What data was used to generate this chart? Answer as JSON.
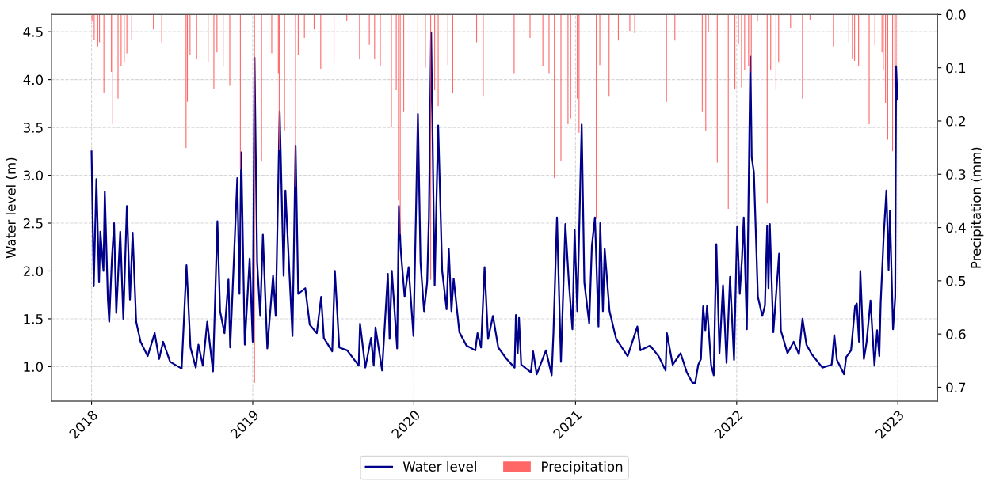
{
  "chart_data": {
    "type": "line",
    "xlabel": null,
    "ylabel": "Water level (m)",
    "y2label": "Precipitation (mm)",
    "xlim": [
      "2017-10-02",
      "2023-04-01"
    ],
    "xticks": [
      {
        "value": "2018-01-01",
        "label": "2018"
      },
      {
        "value": "2019-01-01",
        "label": "2019"
      },
      {
        "value": "2020-01-01",
        "label": "2020"
      },
      {
        "value": "2021-01-01",
        "label": "2021"
      },
      {
        "value": "2022-01-01",
        "label": "2022"
      },
      {
        "value": "2023-01-01",
        "label": "2023"
      }
    ],
    "ylim": [
      0.64,
      4.68
    ],
    "yticks": [
      {
        "value": 1,
        "label": "1.0"
      },
      {
        "value": 1.5,
        "label": "1.5"
      },
      {
        "value": 2,
        "label": "2.0"
      },
      {
        "value": 2.5,
        "label": "2.5"
      },
      {
        "value": 3,
        "label": "3.0"
      },
      {
        "value": 3.5,
        "label": "3.5"
      },
      {
        "value": 4,
        "label": "4.0"
      },
      {
        "value": 4.5,
        "label": "4.5"
      }
    ],
    "y2lim": [
      0.726,
      0.0
    ],
    "y2ticks": [
      {
        "value": 0,
        "label": "0.0"
      },
      0.1,
      0.2,
      0.3,
      0.4,
      0.5,
      0.6,
      0.7
    ],
    "grid": true,
    "legend": "bottom",
    "line_style": "solid",
    "series": [
      {
        "name": "Water level",
        "color": "#00008b",
        "x": [
          "2018-01-01",
          "2018-01-06",
          "2018-01-12",
          "2018-01-18",
          "2018-01-21",
          "2018-01-28",
          "2018-01-31",
          "2018-02-07",
          "2018-02-10",
          "2018-02-16",
          "2018-02-21",
          "2018-02-26",
          "2018-03-07",
          "2018-03-14",
          "2018-03-22",
          "2018-03-29",
          "2018-04-04",
          "2018-04-12",
          "2018-04-22",
          "2018-05-08",
          "2018-05-24",
          "2018-06-03",
          "2018-06-12",
          "2018-06-28",
          "2018-07-24",
          "2018-08-04",
          "2018-08-13",
          "2018-08-25",
          "2018-08-31",
          "2018-09-10",
          "2018-09-20",
          "2018-10-03",
          "2018-10-13",
          "2018-10-19",
          "2018-10-29",
          "2018-11-07",
          "2018-11-11",
          "2018-11-27",
          "2018-12-02",
          "2018-12-06",
          "2018-12-14",
          "2018-12-25",
          "2019-01-01",
          "2019-01-05",
          "2019-01-11",
          "2019-01-18",
          "2019-01-24",
          "2019-02-03",
          "2019-02-16",
          "2019-02-22",
          "2019-03-03",
          "2019-03-12",
          "2019-03-16",
          "2019-04-01",
          "2019-04-08",
          "2019-04-14",
          "2019-04-30",
          "2019-05-10",
          "2019-05-26",
          "2019-06-05",
          "2019-06-11",
          "2019-06-30",
          "2019-07-06",
          "2019-07-16",
          "2019-08-03",
          "2019-08-29",
          "2019-09-01",
          "2019-09-13",
          "2019-09-26",
          "2019-10-02",
          "2019-10-06",
          "2019-10-21",
          "2019-11-03",
          "2019-11-07",
          "2019-11-12",
          "2019-11-24",
          "2019-11-28",
          "2019-12-02",
          "2019-12-11",
          "2019-12-20",
          "2019-12-31",
          "2020-01-06",
          "2020-01-10",
          "2020-01-16",
          "2020-01-24",
          "2020-01-31",
          "2020-02-04",
          "2020-02-09",
          "2020-02-17",
          "2020-02-21",
          "2020-02-25",
          "2020-03-05",
          "2020-03-15",
          "2020-03-20",
          "2020-03-26",
          "2020-03-31",
          "2020-04-13",
          "2020-04-29",
          "2020-05-19",
          "2020-05-24",
          "2020-06-01",
          "2020-06-09",
          "2020-06-17",
          "2020-06-28",
          "2020-07-10",
          "2020-07-29",
          "2020-08-16",
          "2020-08-19",
          "2020-08-23",
          "2020-08-26",
          "2020-08-31",
          "2020-09-22",
          "2020-09-27",
          "2020-10-05",
          "2020-10-26",
          "2020-11-08",
          "2020-11-12",
          "2020-11-20",
          "2020-11-29",
          "2020-12-09",
          "2020-12-17",
          "2020-12-25",
          "2020-12-30",
          "2021-01-05",
          "2021-01-15",
          "2021-01-21",
          "2021-02-01",
          "2021-02-07",
          "2021-02-14",
          "2021-02-22",
          "2021-02-26",
          "2021-03-04",
          "2021-03-08",
          "2021-03-19",
          "2021-04-03",
          "2021-04-29",
          "2021-05-21",
          "2021-05-28",
          "2021-06-19",
          "2021-07-08",
          "2021-07-24",
          "2021-07-27",
          "2021-08-09",
          "2021-08-27",
          "2021-09-10",
          "2021-09-23",
          "2021-09-29",
          "2021-10-06",
          "2021-10-12",
          "2021-10-17",
          "2021-10-22",
          "2021-10-26",
          "2021-11-04",
          "2021-11-10",
          "2021-11-16",
          "2021-11-23",
          "2021-12-01",
          "2021-12-09",
          "2021-12-17",
          "2021-12-26",
          "2022-01-02",
          "2022-01-08",
          "2022-01-13",
          "2022-01-17",
          "2022-01-24",
          "2022-02-01",
          "2022-02-04",
          "2022-02-09",
          "2022-02-18",
          "2022-02-28",
          "2022-03-06",
          "2022-03-11",
          "2022-03-14",
          "2022-03-17",
          "2022-03-25",
          "2022-04-07",
          "2022-04-11",
          "2022-04-26",
          "2022-05-10",
          "2022-05-22",
          "2022-05-30",
          "2022-06-08",
          "2022-06-20",
          "2022-07-14",
          "2022-08-04",
          "2022-08-10",
          "2022-08-16",
          "2022-09-01",
          "2022-09-06",
          "2022-09-17",
          "2022-09-26",
          "2022-09-30",
          "2022-10-05",
          "2022-10-08",
          "2022-10-16",
          "2022-10-22",
          "2022-10-31",
          "2022-11-09",
          "2022-11-15",
          "2022-11-20",
          "2022-11-23",
          "2022-11-30",
          "2022-12-06",
          "2022-12-11",
          "2022-12-14",
          "2022-12-21",
          "2022-12-26",
          "2022-12-28",
          "2022-12-31"
        ],
        "values": [
          3.25,
          1.84,
          2.96,
          1.88,
          2.41,
          2.0,
          2.83,
          1.7,
          1.47,
          2.12,
          2.5,
          1.56,
          2.41,
          1.5,
          2.68,
          1.7,
          2.4,
          1.47,
          1.26,
          1.11,
          1.35,
          1.08,
          1.26,
          1.05,
          0.98,
          2.06,
          1.2,
          0.99,
          1.23,
          1.01,
          1.47,
          0.95,
          2.52,
          1.58,
          1.35,
          1.91,
          1.2,
          2.97,
          1.76,
          3.24,
          1.23,
          2.13,
          1.26,
          4.23,
          2.09,
          1.53,
          2.38,
          1.19,
          1.95,
          1.53,
          3.67,
          1.95,
          2.84,
          1.32,
          3.31,
          1.76,
          1.82,
          1.44,
          1.35,
          1.73,
          1.3,
          1.16,
          2.0,
          1.2,
          1.17,
          1.01,
          1.45,
          0.99,
          1.3,
          1.01,
          1.41,
          0.96,
          1.97,
          1.29,
          2.0,
          1.19,
          2.68,
          2.23,
          1.73,
          2.04,
          1.32,
          2.68,
          3.64,
          2.09,
          1.58,
          1.88,
          2.56,
          4.49,
          1.85,
          2.71,
          3.52,
          2.0,
          1.6,
          2.23,
          1.58,
          1.92,
          1.36,
          1.22,
          1.17,
          1.35,
          1.2,
          2.04,
          1.29,
          1.53,
          1.2,
          1.08,
          0.99,
          1.54,
          1.14,
          1.51,
          1.02,
          0.94,
          1.16,
          0.92,
          1.17,
          0.91,
          1.35,
          2.56,
          1.05,
          2.49,
          1.88,
          1.39,
          2.43,
          1.58,
          3.53,
          1.88,
          1.45,
          2.26,
          2.56,
          1.42,
          2.5,
          1.58,
          2.23,
          1.58,
          1.29,
          1.11,
          1.42,
          1.17,
          1.22,
          1.11,
          0.96,
          1.35,
          1.02,
          1.14,
          0.94,
          0.83,
          0.83,
          1.02,
          1.08,
          1.63,
          1.38,
          1.64,
          1.02,
          0.91,
          2.28,
          1.14,
          1.85,
          1.04,
          1.94,
          1.07,
          2.46,
          1.76,
          2.13,
          2.56,
          1.39,
          4.24,
          3.19,
          3.03,
          1.73,
          1.53,
          1.64,
          2.47,
          1.82,
          2.49,
          1.36,
          2.18,
          1.38,
          1.14,
          1.26,
          1.13,
          1.5,
          1.23,
          1.13,
          0.99,
          1.02,
          1.33,
          1.07,
          0.92,
          1.1,
          1.17,
          1.63,
          1.66,
          1.26,
          2.0,
          1.08,
          1.25,
          1.69,
          1.01,
          1.38,
          1.11,
          1.66,
          2.38,
          2.84,
          2.01,
          2.63,
          1.39,
          1.73,
          4.14,
          3.79
        ]
      },
      {
        "name": "Precipitation",
        "type": "bar",
        "axis": "y2",
        "color": "#ff4d4d",
        "x": [
          "2018-01-02",
          "2018-01-07",
          "2018-01-15",
          "2018-01-19",
          "2018-01-29",
          "2018-02-15",
          "2018-02-18",
          "2018-03-02",
          "2018-03-09",
          "2018-03-16",
          "2018-03-22",
          "2018-04-02",
          "2018-05-21",
          "2018-06-09",
          "2018-08-03",
          "2018-08-06",
          "2018-08-12",
          "2018-08-27",
          "2018-09-22",
          "2018-10-05",
          "2018-10-12",
          "2018-10-26",
          "2018-11-10",
          "2018-12-04",
          "2019-01-05",
          "2019-01-21",
          "2019-02-13",
          "2019-02-28",
          "2019-03-02",
          "2019-03-14",
          "2019-04-08",
          "2019-04-14",
          "2019-04-28",
          "2019-05-20",
          "2019-06-04",
          "2019-07-04",
          "2019-08-02",
          "2019-08-31",
          "2019-09-22",
          "2019-10-04",
          "2019-10-17",
          "2019-11-11",
          "2019-11-22",
          "2019-11-27",
          "2019-12-01",
          "2019-12-09",
          "2020-01-10",
          "2020-01-27",
          "2020-02-08",
          "2020-02-17",
          "2020-02-25",
          "2020-03-18",
          "2020-03-29",
          "2020-05-22",
          "2020-06-06",
          "2020-08-15",
          "2020-09-20",
          "2020-10-19",
          "2020-11-02",
          "2020-11-14",
          "2020-11-29",
          "2020-12-15",
          "2020-12-21",
          "2021-01-05",
          "2021-01-09",
          "2021-02-17",
          "2021-02-25",
          "2021-03-18",
          "2021-04-08",
          "2021-05-04",
          "2021-05-15",
          "2021-07-26",
          "2021-08-14",
          "2021-10-15",
          "2021-10-23",
          "2021-10-29",
          "2021-11-18",
          "2021-12-13",
          "2021-12-28",
          "2022-01-05",
          "2022-01-12",
          "2022-01-19",
          "2022-01-28",
          "2022-02-03",
          "2022-02-17",
          "2022-03-11",
          "2022-03-19",
          "2022-03-31",
          "2022-04-06",
          "2022-05-03",
          "2022-05-30",
          "2022-06-16",
          "2022-08-08",
          "2022-09-12",
          "2022-09-20",
          "2022-09-25",
          "2022-10-04",
          "2022-10-28",
          "2022-11-10",
          "2022-11-26",
          "2022-11-29",
          "2022-12-04",
          "2022-12-09",
          "2022-12-20",
          "2022-12-25",
          "2022-12-28"
        ],
        "values": [
          0.012,
          0.047,
          0.06,
          0.052,
          0.148,
          0.108,
          0.206,
          0.158,
          0.097,
          0.089,
          0.073,
          0.049,
          0.028,
          0.052,
          0.251,
          0.164,
          0.076,
          0.084,
          0.089,
          0.14,
          0.071,
          0.097,
          0.134,
          0.291,
          0.692,
          0.275,
          0.073,
          0.11,
          0.254,
          0.219,
          0.323,
          0.076,
          0.044,
          0.028,
          0.102,
          0.092,
          0.012,
          0.084,
          0.057,
          0.084,
          0.097,
          0.211,
          0.142,
          0.349,
          0.413,
          0.182,
          0.318,
          0.1,
          0.498,
          0.142,
          0.172,
          0.095,
          0.148,
          0.052,
          0.153,
          0.11,
          0.044,
          0.097,
          0.11,
          0.307,
          0.275,
          0.206,
          0.195,
          0.158,
          0.222,
          0.384,
          0.095,
          0.153,
          0.049,
          0.031,
          0.035,
          0.164,
          0.049,
          0.182,
          0.219,
          0.033,
          0.278,
          0.365,
          0.14,
          0.055,
          0.137,
          0.105,
          0.097,
          0.108,
          0.012,
          0.355,
          0.105,
          0.142,
          0.089,
          0.025,
          0.158,
          0.01,
          0.06,
          0.052,
          0.084,
          0.087,
          0.097,
          0.206,
          0.057,
          0.071,
          0.105,
          0.166,
          0.235,
          0.257,
          0.137,
          0.097
        ]
      }
    ]
  }
}
